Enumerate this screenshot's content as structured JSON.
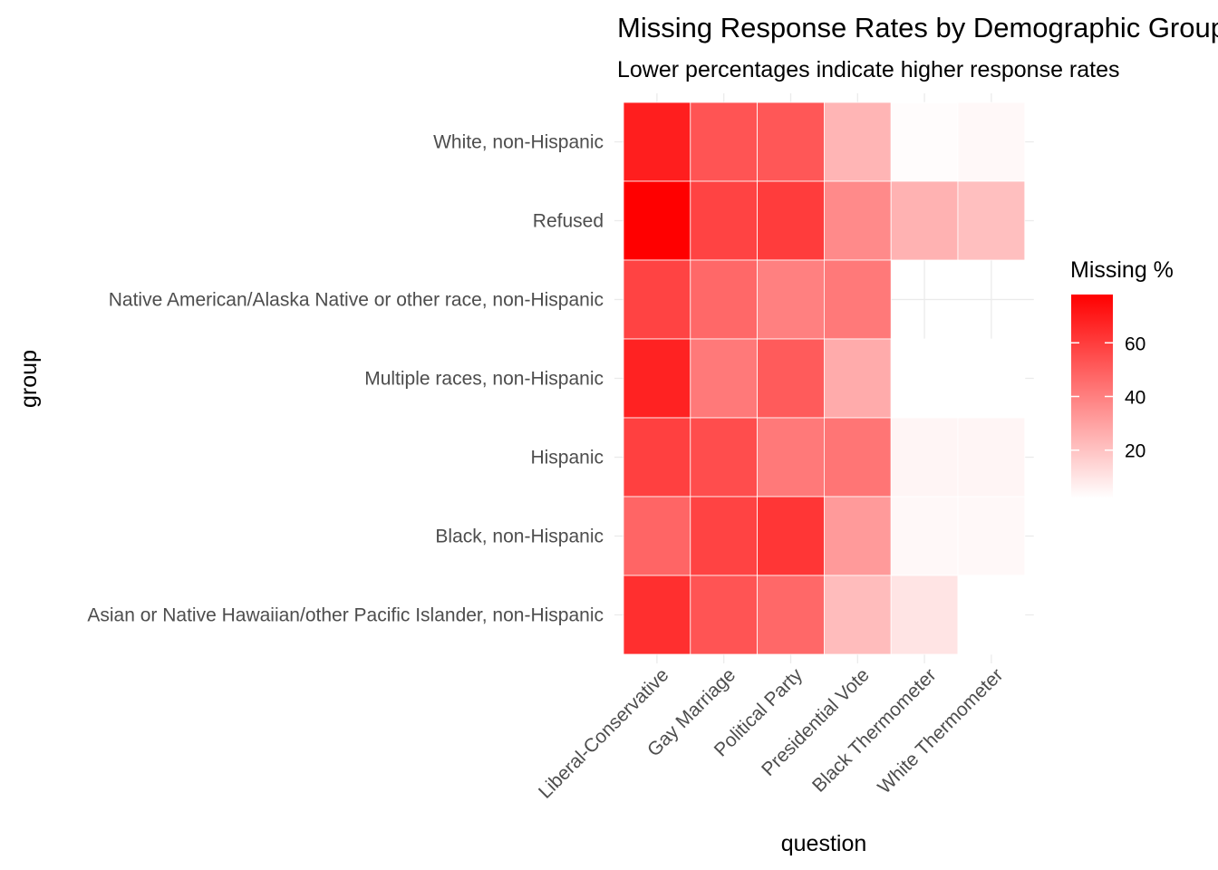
{
  "chart_data": {
    "type": "heatmap",
    "title": "Missing Response Rates by Demographic Group",
    "subtitle": "Lower percentages indicate higher response rates",
    "xlabel": "question",
    "ylabel": "group",
    "x": [
      "Liberal-Conservative",
      "Gay Marriage",
      "Political Party",
      "Presidential Vote",
      "Black Thermometer",
      "White Thermometer"
    ],
    "y": [
      "White, non-Hispanic",
      "Refused",
      "Native American/Alaska Native or other race, non-Hispanic",
      "Multiple races, non-Hispanic",
      "Hispanic",
      "Black, non-Hispanic",
      "Asian or Native Hawaiian/other Pacific Islander, non-Hispanic"
    ],
    "values": [
      [
        69,
        53,
        52,
        24,
        3,
        4
      ],
      [
        78,
        58,
        60,
        37,
        25,
        21
      ],
      [
        58,
        47,
        40,
        42,
        null,
        null
      ],
      [
        68,
        42,
        51,
        27,
        2,
        2
      ],
      [
        59,
        55,
        42,
        43,
        5,
        5
      ],
      [
        48,
        58,
        62,
        32,
        4,
        4
      ],
      [
        64,
        53,
        47,
        22,
        10,
        2
      ]
    ],
    "legend": {
      "title": "Missing %",
      "position": "right",
      "ticks": [
        20,
        40,
        60
      ],
      "range": [
        2,
        78
      ],
      "low_color": "#ffffff",
      "high_color": "#ff0000"
    },
    "grid": true
  }
}
